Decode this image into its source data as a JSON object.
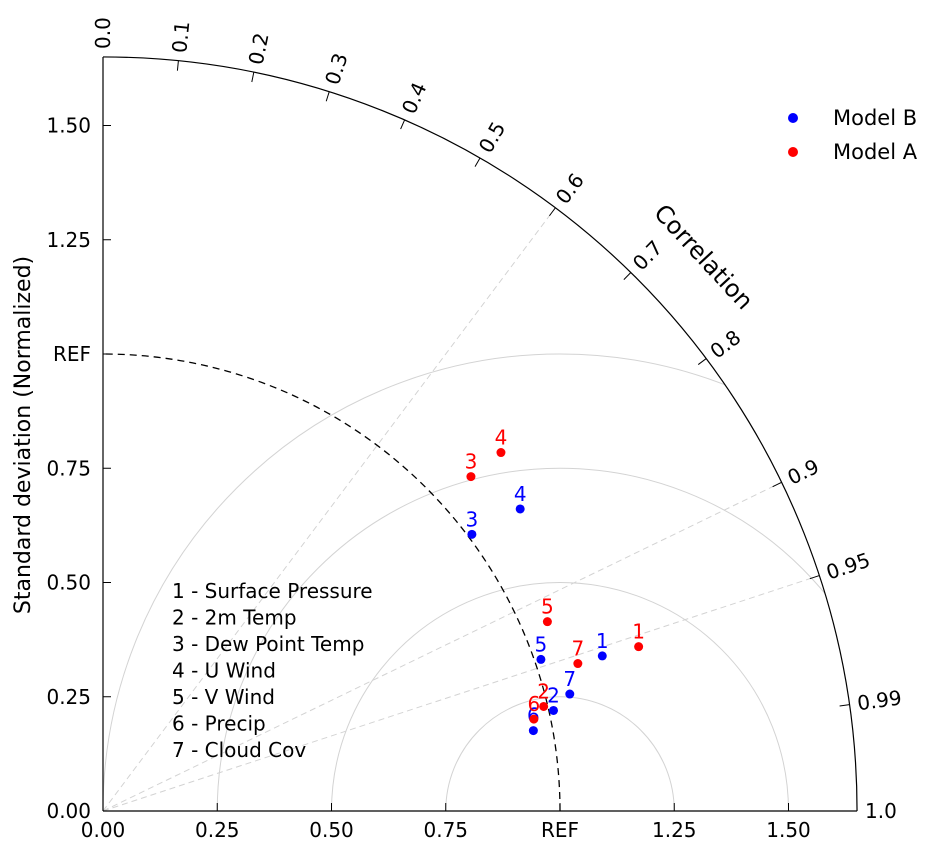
{
  "chart_data": {
    "type": "scatter",
    "subtype": "taylor-diagram",
    "ylabel": "Standard deviation (Normalized)",
    "correlation_label": "Correlation",
    "ref_label": "REF",
    "ref_std": 1.0,
    "std_max": 1.65,
    "x_ticks": [
      {
        "value": 0.0,
        "label": "0.00"
      },
      {
        "value": 0.25,
        "label": "0.25"
      },
      {
        "value": 0.5,
        "label": "0.50"
      },
      {
        "value": 0.75,
        "label": "0.75"
      },
      {
        "value": 1.0,
        "label": "REF"
      },
      {
        "value": 1.25,
        "label": "1.25"
      },
      {
        "value": 1.5,
        "label": "1.50"
      }
    ],
    "y_ticks": [
      {
        "value": 0.0,
        "label": "0.00"
      },
      {
        "value": 0.25,
        "label": "0.25"
      },
      {
        "value": 0.5,
        "label": "0.50"
      },
      {
        "value": 0.75,
        "label": "0.75"
      },
      {
        "value": 1.0,
        "label": "REF"
      },
      {
        "value": 1.25,
        "label": "1.25"
      },
      {
        "value": 1.5,
        "label": "1.50"
      }
    ],
    "correlation_ticks": [
      {
        "value": 0.0,
        "label": "0.0"
      },
      {
        "value": 0.1,
        "label": "0.1"
      },
      {
        "value": 0.2,
        "label": "0.2"
      },
      {
        "value": 0.3,
        "label": "0.3"
      },
      {
        "value": 0.4,
        "label": "0.4"
      },
      {
        "value": 0.5,
        "label": "0.5"
      },
      {
        "value": 0.6,
        "label": "0.6"
      },
      {
        "value": 0.7,
        "label": "0.7"
      },
      {
        "value": 0.8,
        "label": "0.8"
      },
      {
        "value": 0.9,
        "label": "0.9"
      },
      {
        "value": 0.95,
        "label": "0.95"
      },
      {
        "value": 0.99,
        "label": "0.99"
      },
      {
        "value": 1.0,
        "label": "1.0"
      }
    ],
    "correlation_gridlines": [
      0.6,
      0.9,
      0.95
    ],
    "rms_contours": [
      0.25,
      0.5,
      0.75,
      1.0
    ],
    "legend_position": "top-right",
    "series": [
      {
        "name": "Model B",
        "color": "#0000ff",
        "points": [
          {
            "label": "1",
            "std": 1.144,
            "corr": 0.955
          },
          {
            "label": "2",
            "std": 1.01,
            "corr": 0.976
          },
          {
            "label": "3",
            "std": 1.009,
            "corr": 0.8
          },
          {
            "label": "4",
            "std": 1.127,
            "corr": 0.81
          },
          {
            "label": "5",
            "std": 1.014,
            "corr": 0.945
          },
          {
            "label": "6",
            "std": 0.958,
            "corr": 0.983
          },
          {
            "label": "7",
            "std": 1.053,
            "corr": 0.97
          }
        ]
      },
      {
        "name": "Model A",
        "color": "#ff0000",
        "points": [
          {
            "label": "1",
            "std": 1.226,
            "corr": 0.956
          },
          {
            "label": "2",
            "std": 0.991,
            "corr": 0.973
          },
          {
            "label": "3",
            "std": 1.088,
            "corr": 0.74
          },
          {
            "label": "4",
            "std": 1.172,
            "corr": 0.743
          },
          {
            "label": "5",
            "std": 1.057,
            "corr": 0.92
          },
          {
            "label": "6",
            "std": 0.964,
            "corr": 0.978
          },
          {
            "label": "7",
            "std": 1.088,
            "corr": 0.955
          }
        ]
      }
    ],
    "variable_key": [
      "1 - Surface Pressure",
      "2 - 2m Temp",
      "3 - Dew Point Temp",
      "4 - U Wind",
      "5 - V Wind",
      "6 - Precip",
      "7 - Cloud Cov"
    ]
  }
}
